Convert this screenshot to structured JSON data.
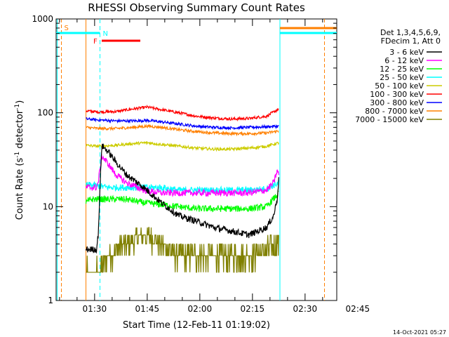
{
  "chart_data": {
    "type": "line",
    "title": "RHESSI Observing Summary Count Rates",
    "xlabel": "Start Time (12-Feb-11 01:19:02)",
    "ylabel_main": "Count Rate (s",
    "ylabel_sup1": "-1",
    "ylabel_mid": " detector",
    "ylabel_sup2": "-1",
    "ylabel_end": ")",
    "yscale": "log",
    "ylim": [
      1,
      1000
    ],
    "xlim_minutes": [
      0,
      80
    ],
    "x_tick_labels": [
      "01:30",
      "01:45",
      "02:00",
      "02:15",
      "02:30",
      "02:45"
    ],
    "x_tick_minutes": [
      10.97,
      25.97,
      40.97,
      55.97,
      70.97,
      85.97
    ],
    "y_tick_labels": [
      "1",
      "10",
      "100",
      "1000"
    ],
    "y_tick_values": [
      1,
      10,
      100,
      1000
    ],
    "legend_header": [
      "Det 1,3,4,5,6,9,",
      "FDecim 1, Att 0"
    ],
    "legend_placement": "right",
    "footer_date": "14-Oct-2021 05:27",
    "flags": [
      {
        "label": "S",
        "color": "#ff8000"
      },
      {
        "label": "N",
        "color": "#00ffff"
      },
      {
        "label": "F",
        "color": "#ff0000"
      }
    ],
    "data_window_minutes": [
      8.5,
      63.5
    ],
    "series": [
      {
        "name": "3 - 6 keV",
        "color": "#000000",
        "x": [
          8.5,
          11.5,
          12,
          13,
          15,
          17,
          20,
          25,
          30,
          35,
          40,
          45,
          50,
          55,
          60,
          62,
          63,
          63.5
        ],
        "values": [
          3.5,
          3.5,
          5,
          45,
          38,
          30,
          22,
          16,
          11,
          8,
          7,
          6,
          5.5,
          5,
          6,
          8,
          12,
          20
        ]
      },
      {
        "name": "6 - 12 keV",
        "color": "#ff00ff",
        "x": [
          8.5,
          11.5,
          12,
          13,
          15,
          17,
          20,
          25,
          30,
          35,
          40,
          45,
          50,
          55,
          60,
          62,
          63,
          63.5
        ],
        "values": [
          16,
          16,
          18,
          35,
          28,
          22,
          18,
          15,
          14,
          14,
          14,
          14,
          14,
          14,
          15,
          18,
          24,
          22
        ]
      },
      {
        "name": "12 - 25 keV",
        "color": "#00ff00",
        "x": [
          8.5,
          10,
          15,
          20,
          25,
          30,
          35,
          40,
          45,
          50,
          55,
          60,
          63.5
        ],
        "values": [
          11,
          12,
          12,
          12,
          11,
          10.5,
          10,
          9.5,
          9.5,
          9.5,
          9.5,
          10,
          14
        ]
      },
      {
        "name": "25 - 50 keV",
        "color": "#00ffff",
        "x": [
          8.5,
          10,
          15,
          20,
          25,
          30,
          35,
          40,
          45,
          50,
          55,
          60,
          63.5
        ],
        "values": [
          17,
          17,
          16,
          16,
          16,
          16,
          15,
          15,
          15,
          15,
          15,
          15.5,
          18
        ]
      },
      {
        "name": "50 - 100 keV",
        "color": "#cccc00",
        "x": [
          8.5,
          12,
          17,
          22,
          26,
          30,
          35,
          40,
          45,
          50,
          55,
          60,
          63.5
        ],
        "values": [
          45,
          44,
          45,
          47,
          48,
          46,
          44,
          42,
          41,
          41,
          42,
          44,
          48
        ]
      },
      {
        "name": "100 - 300 keV",
        "color": "#ff0000",
        "x": [
          8.5,
          12,
          17,
          22,
          26,
          30,
          35,
          40,
          45,
          50,
          55,
          60,
          63.5
        ],
        "values": [
          105,
          102,
          103,
          110,
          115,
          108,
          100,
          92,
          88,
          86,
          87,
          92,
          110
        ]
      },
      {
        "name": "300 - 800 keV",
        "color": "#0000ff",
        "x": [
          8.5,
          12,
          17,
          22,
          26,
          30,
          35,
          40,
          45,
          50,
          55,
          60,
          63.5
        ],
        "values": [
          86,
          84,
          82,
          82,
          83,
          80,
          76,
          72,
          70,
          69,
          70,
          71,
          72
        ]
      },
      {
        "name": "800 - 7000 keV",
        "color": "#ff8000",
        "x": [
          8.5,
          12,
          17,
          22,
          26,
          30,
          35,
          40,
          45,
          50,
          55,
          60,
          63.5
        ],
        "values": [
          70,
          68,
          68,
          70,
          72,
          70,
          66,
          63,
          61,
          60,
          60,
          61,
          64
        ]
      },
      {
        "name": "7000 - 15000 keV",
        "color": "#808000",
        "x": [
          8.5,
          12,
          15,
          20,
          25,
          30,
          35,
          40,
          45,
          50,
          55,
          60,
          63.5
        ],
        "values": [
          2,
          2,
          3,
          4,
          5,
          4,
          3,
          3,
          3,
          3,
          3,
          3.5,
          4
        ]
      }
    ]
  }
}
